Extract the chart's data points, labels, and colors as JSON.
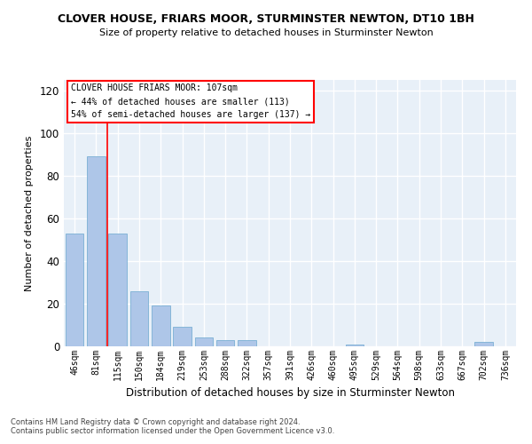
{
  "title": "CLOVER HOUSE, FRIARS MOOR, STURMINSTER NEWTON, DT10 1BH",
  "subtitle": "Size of property relative to detached houses in Sturminster Newton",
  "xlabel": "Distribution of detached houses by size in Sturminster Newton",
  "ylabel": "Number of detached properties",
  "bar_labels": [
    "46sqm",
    "81sqm",
    "115sqm",
    "150sqm",
    "184sqm",
    "219sqm",
    "253sqm",
    "288sqm",
    "322sqm",
    "357sqm",
    "391sqm",
    "426sqm",
    "460sqm",
    "495sqm",
    "529sqm",
    "564sqm",
    "598sqm",
    "633sqm",
    "667sqm",
    "702sqm",
    "736sqm"
  ],
  "bar_values": [
    53,
    89,
    53,
    26,
    19,
    9,
    4,
    3,
    3,
    0,
    0,
    0,
    0,
    1,
    0,
    0,
    0,
    0,
    0,
    2,
    0
  ],
  "bar_color": "#aec6e8",
  "bar_edge_color": "#7bafd4",
  "vline_x": 1.5,
  "vline_color": "red",
  "annotation_text": "CLOVER HOUSE FRIARS MOOR: 107sqm\n← 44% of detached houses are smaller (113)\n54% of semi-detached houses are larger (137) →",
  "annotation_box_color": "white",
  "annotation_box_edge_color": "red",
  "ylim": [
    0,
    125
  ],
  "yticks": [
    0,
    20,
    40,
    60,
    80,
    100,
    120
  ],
  "background_color": "#e8f0f8",
  "footer1": "Contains HM Land Registry data © Crown copyright and database right 2024.",
  "footer2": "Contains public sector information licensed under the Open Government Licence v3.0."
}
